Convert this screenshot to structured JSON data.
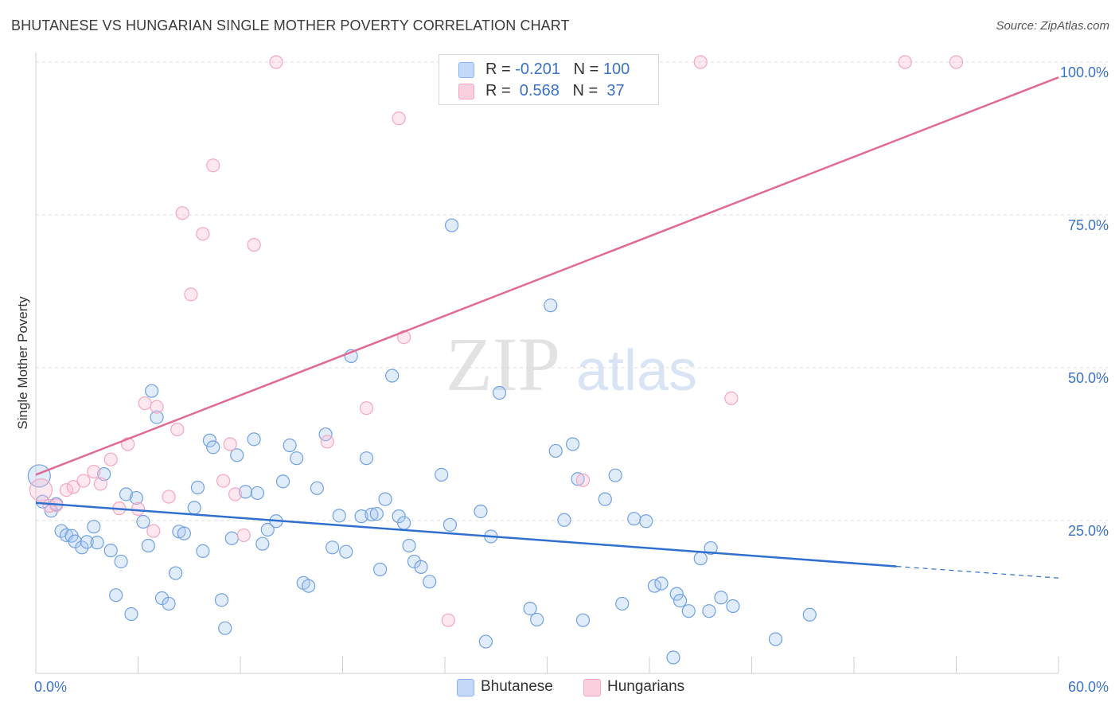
{
  "title": "BHUTANESE VS HUNGARIAN SINGLE MOTHER POVERTY CORRELATION CHART",
  "source": "Source: ZipAtlas.com",
  "watermark": {
    "zip": "ZIP",
    "atlas": "atlas"
  },
  "legend": {
    "rows": [
      {
        "r_label": "R = ",
        "r_value": "-0.201",
        "n_label": "N = ",
        "n_value": "100",
        "color": "#8ab4f0"
      },
      {
        "r_label": "R = ",
        "r_value": " 0.568",
        "n_label": "N = ",
        "n_value": " 37",
        "color": "#f4a6bf"
      }
    ]
  },
  "chart_data": {
    "type": "scatter",
    "title": "BHUTANESE VS HUNGARIAN SINGLE MOTHER POVERTY CORRELATION CHART",
    "xlabel": "",
    "ylabel": "Single Mother Poverty",
    "xlim": [
      0,
      60
    ],
    "ylim": [
      0,
      100
    ],
    "x_tick_labels": [
      "0.0%",
      "60.0%"
    ],
    "y_tick_labels": [
      "25.0%",
      "50.0%",
      "75.0%",
      "100.0%"
    ],
    "y_ticks": [
      25,
      50,
      75,
      100
    ],
    "grid": "horizontal dashed",
    "legend_position": "top-center",
    "series": [
      {
        "name": "Bhutanese",
        "color": "#6fa0e6",
        "line_color": "#2f6fcf",
        "trend": {
          "x0": 0,
          "y0": 27.9,
          "x1": 50.5,
          "y1": 17.5,
          "dash_to_x": 60,
          "dash_to_y": 15.6
        },
        "points": [
          [
            0.2,
            32.3
          ],
          [
            0.4,
            28.1
          ],
          [
            0.9,
            26.6
          ],
          [
            1.2,
            27.7
          ],
          [
            1.5,
            23.3
          ],
          [
            1.8,
            22.6
          ],
          [
            2.1,
            22.5
          ],
          [
            2.3,
            21.6
          ],
          [
            2.7,
            20.6
          ],
          [
            3.0,
            21.5
          ],
          [
            3.4,
            24.0
          ],
          [
            3.6,
            21.4
          ],
          [
            4.0,
            32.6
          ],
          [
            4.4,
            20.1
          ],
          [
            4.7,
            12.8
          ],
          [
            5.0,
            18.3
          ],
          [
            5.3,
            29.3
          ],
          [
            5.6,
            9.7
          ],
          [
            5.9,
            28.7
          ],
          [
            6.3,
            24.8
          ],
          [
            6.6,
            20.9
          ],
          [
            6.8,
            46.2
          ],
          [
            7.1,
            41.9
          ],
          [
            7.4,
            12.3
          ],
          [
            7.8,
            11.4
          ],
          [
            8.2,
            16.4
          ],
          [
            8.4,
            23.2
          ],
          [
            8.7,
            22.9
          ],
          [
            9.3,
            27.1
          ],
          [
            9.5,
            30.4
          ],
          [
            9.8,
            20.0
          ],
          [
            10.2,
            38.1
          ],
          [
            10.4,
            37.0
          ],
          [
            10.9,
            12.0
          ],
          [
            11.1,
            7.4
          ],
          [
            11.5,
            22.1
          ],
          [
            11.8,
            35.7
          ],
          [
            12.3,
            29.7
          ],
          [
            12.8,
            38.3
          ],
          [
            13.0,
            29.5
          ],
          [
            13.3,
            21.2
          ],
          [
            13.6,
            23.5
          ],
          [
            14.1,
            24.9
          ],
          [
            14.5,
            31.4
          ],
          [
            14.9,
            37.3
          ],
          [
            15.3,
            35.2
          ],
          [
            15.7,
            14.8
          ],
          [
            16.0,
            14.3
          ],
          [
            16.5,
            30.3
          ],
          [
            17.0,
            39.1
          ],
          [
            17.4,
            20.6
          ],
          [
            17.8,
            25.8
          ],
          [
            18.2,
            19.9
          ],
          [
            18.5,
            51.9
          ],
          [
            19.1,
            25.7
          ],
          [
            19.4,
            35.2
          ],
          [
            19.7,
            26.0
          ],
          [
            20.0,
            26.1
          ],
          [
            20.2,
            17.0
          ],
          [
            20.5,
            28.5
          ],
          [
            20.9,
            48.7
          ],
          [
            21.3,
            25.7
          ],
          [
            21.6,
            24.6
          ],
          [
            21.9,
            20.9
          ],
          [
            22.2,
            18.3
          ],
          [
            22.6,
            17.4
          ],
          [
            23.1,
            15.0
          ],
          [
            23.8,
            32.5
          ],
          [
            24.3,
            24.3
          ],
          [
            24.4,
            73.3
          ],
          [
            26.1,
            26.5
          ],
          [
            26.4,
            5.2
          ],
          [
            26.7,
            22.4
          ],
          [
            27.2,
            45.9
          ],
          [
            29.0,
            10.6
          ],
          [
            29.4,
            8.8
          ],
          [
            30.2,
            60.2
          ],
          [
            30.5,
            36.4
          ],
          [
            31.0,
            25.1
          ],
          [
            31.5,
            37.5
          ],
          [
            31.8,
            31.8
          ],
          [
            32.1,
            8.7
          ],
          [
            33.4,
            28.5
          ],
          [
            34.0,
            32.4
          ],
          [
            34.4,
            11.4
          ],
          [
            35.1,
            25.3
          ],
          [
            35.8,
            24.9
          ],
          [
            36.3,
            14.3
          ],
          [
            36.7,
            14.7
          ],
          [
            37.4,
            2.6
          ],
          [
            37.6,
            13.0
          ],
          [
            37.8,
            11.9
          ],
          [
            38.3,
            10.2
          ],
          [
            39.0,
            18.8
          ],
          [
            39.5,
            10.2
          ],
          [
            39.6,
            20.5
          ],
          [
            40.2,
            12.4
          ],
          [
            40.9,
            11.0
          ],
          [
            43.4,
            5.6
          ],
          [
            45.4,
            9.6
          ]
        ]
      },
      {
        "name": "Hungarians",
        "color": "#f4a6bf",
        "line_color": "#e06a93",
        "trend": {
          "x0": 0,
          "y0": 32.5,
          "x1": 60,
          "y1": 97.5
        },
        "points": [
          [
            0.3,
            30.0
          ],
          [
            0.8,
            27.4
          ],
          [
            1.2,
            27.5
          ],
          [
            1.8,
            30.0
          ],
          [
            2.2,
            30.5
          ],
          [
            2.8,
            31.5
          ],
          [
            3.4,
            33.0
          ],
          [
            3.8,
            31.0
          ],
          [
            4.4,
            35.0
          ],
          [
            4.9,
            27.0
          ],
          [
            5.4,
            37.5
          ],
          [
            6.0,
            26.9
          ],
          [
            6.4,
            44.2
          ],
          [
            6.9,
            23.3
          ],
          [
            7.1,
            43.6
          ],
          [
            7.8,
            28.9
          ],
          [
            8.3,
            39.9
          ],
          [
            8.6,
            75.3
          ],
          [
            9.1,
            62.0
          ],
          [
            9.8,
            71.9
          ],
          [
            10.4,
            83.1
          ],
          [
            11.0,
            31.5
          ],
          [
            11.4,
            37.5
          ],
          [
            11.7,
            29.3
          ],
          [
            12.2,
            22.6
          ],
          [
            12.8,
            70.1
          ],
          [
            14.1,
            100.0
          ],
          [
            17.1,
            37.9
          ],
          [
            19.4,
            43.4
          ],
          [
            21.3,
            90.8
          ],
          [
            21.6,
            55.0
          ],
          [
            24.2,
            8.7
          ],
          [
            32.1,
            31.6
          ],
          [
            39.0,
            100.0
          ],
          [
            40.8,
            45.0
          ],
          [
            51.0,
            100.0
          ],
          [
            54.0,
            100.0
          ]
        ]
      }
    ]
  },
  "bottom_legend": {
    "items": [
      {
        "label": "Bhutanese"
      },
      {
        "label": "Hungarians"
      }
    ]
  }
}
